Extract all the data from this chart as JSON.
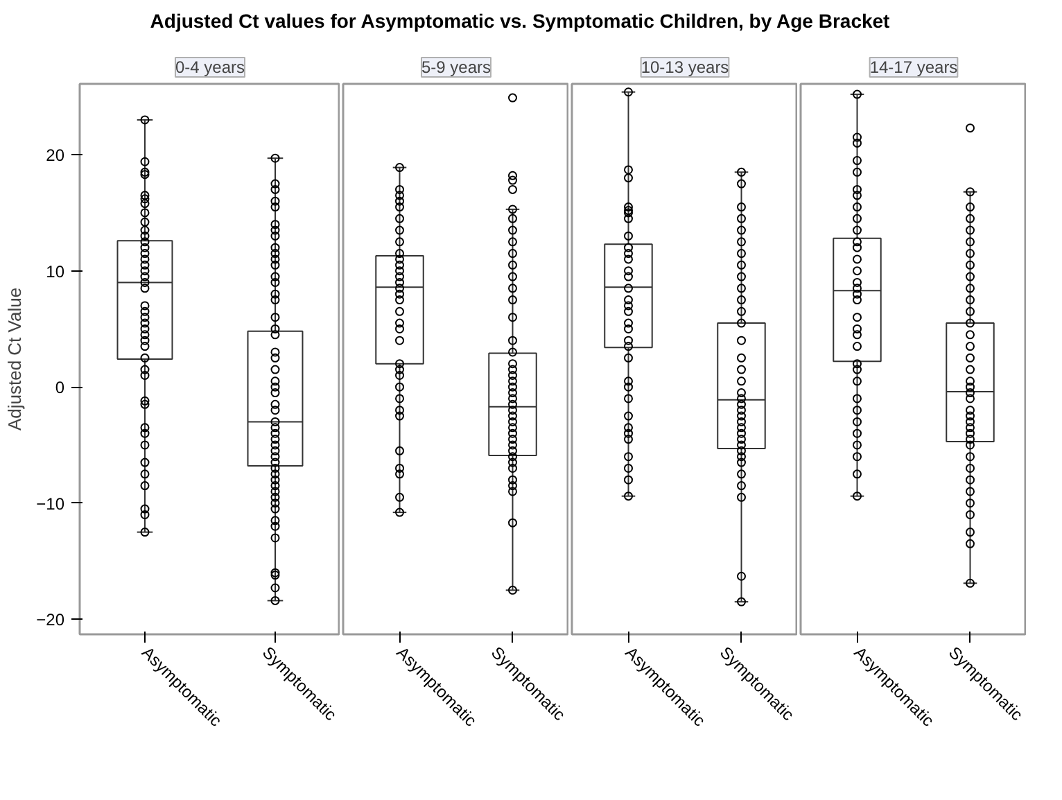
{
  "chart_data": [
    {
      "type": "box",
      "title": "Adjusted Ct values for Asymptomatic vs. Symptomatic Children, by Age Bracket",
      "subtitle": "0-4 years",
      "ylabel": "Adjusted Ct Value",
      "categories": [
        "Asymptomatic",
        "Symptomatic"
      ],
      "ylim": [
        -21.3,
        26.1
      ],
      "yticks": [
        -20,
        -10,
        0,
        10,
        20
      ],
      "grid": false,
      "marker": "circle",
      "boxes": [
        {
          "low": -12.5,
          "q1": 2.4,
          "median": 9,
          "q3": 12.6,
          "high": 23
        },
        {
          "low": -18.4,
          "q1": -6.8,
          "median": -3,
          "q3": 4.8,
          "high": 19.7
        }
      ],
      "series": [
        {
          "type": "scatter",
          "color": "#000000",
          "x": [
            "Asymptomatic",
            "Asymptomatic",
            "Asymptomatic",
            "Asymptomatic",
            "Asymptomatic",
            "Asymptomatic",
            "Asymptomatic",
            "Asymptomatic",
            "Asymptomatic",
            "Asymptomatic",
            "Asymptomatic",
            "Asymptomatic",
            "Asymptomatic",
            "Asymptomatic",
            "Asymptomatic",
            "Asymptomatic",
            "Asymptomatic",
            "Asymptomatic",
            "Asymptomatic",
            "Asymptomatic",
            "Asymptomatic",
            "Asymptomatic",
            "Asymptomatic",
            "Asymptomatic",
            "Asymptomatic",
            "Asymptomatic",
            "Asymptomatic",
            "Asymptomatic",
            "Asymptomatic",
            "Asymptomatic",
            "Asymptomatic",
            "Asymptomatic",
            "Asymptomatic",
            "Asymptomatic",
            "Asymptomatic",
            "Asymptomatic",
            "Asymptomatic",
            "Asymptomatic",
            "Asymptomatic",
            "Asymptomatic",
            "Asymptomatic",
            "Asymptomatic",
            "Symptomatic",
            "Symptomatic",
            "Symptomatic",
            "Symptomatic",
            "Symptomatic",
            "Symptomatic",
            "Symptomatic",
            "Symptomatic",
            "Symptomatic",
            "Symptomatic",
            "Symptomatic",
            "Symptomatic",
            "Symptomatic",
            "Symptomatic",
            "Symptomatic",
            "Symptomatic",
            "Symptomatic",
            "Symptomatic",
            "Symptomatic",
            "Symptomatic",
            "Symptomatic",
            "Symptomatic",
            "Symptomatic",
            "Symptomatic",
            "Symptomatic",
            "Symptomatic",
            "Symptomatic",
            "Symptomatic",
            "Symptomatic",
            "Symptomatic",
            "Symptomatic",
            "Symptomatic",
            "Symptomatic",
            "Symptomatic",
            "Symptomatic",
            "Symptomatic",
            "Symptomatic",
            "Symptomatic",
            "Symptomatic",
            "Symptomatic",
            "Symptomatic",
            "Symptomatic",
            "Symptomatic",
            "Symptomatic",
            "Symptomatic",
            "Symptomatic",
            "Symptomatic",
            "Symptomatic",
            "Symptomatic",
            "Symptomatic"
          ],
          "values": [
            23,
            19.4,
            18.5,
            18.3,
            16.5,
            16.2,
            15.8,
            15,
            14.2,
            13.5,
            13,
            12.5,
            12,
            11.5,
            11,
            10.5,
            10,
            9.5,
            9,
            8.5,
            7,
            6.5,
            6,
            5.5,
            5,
            4.5,
            4,
            3.5,
            2.5,
            1.5,
            1,
            -1.2,
            -1.5,
            -3.5,
            -4,
            -5,
            -6.5,
            -7.5,
            -8.5,
            -10.5,
            -11,
            -12.5,
            19.7,
            17.5,
            17,
            16,
            15.5,
            14,
            13.5,
            13,
            12,
            11.5,
            11,
            10.5,
            9.5,
            9,
            8,
            7.5,
            6,
            5,
            4.5,
            3,
            2.5,
            1.5,
            0.5,
            0,
            -0.5,
            -1.5,
            -2,
            -3,
            -3.5,
            -4,
            -4.5,
            -5,
            -5.5,
            -6,
            -6.5,
            -7,
            -7.5,
            -8,
            -8.5,
            -9,
            -9.5,
            -10,
            -10.5,
            -11.5,
            -12,
            -13,
            -16,
            -16.2,
            -17.3,
            -18.4
          ]
        }
      ]
    },
    {
      "type": "box",
      "subtitle": "5-9 years",
      "categories": [
        "Asymptomatic",
        "Symptomatic"
      ],
      "ylim": [
        -21.3,
        26.1
      ],
      "tick_labels": "x",
      "grid": false,
      "marker": "circle",
      "boxes": [
        {
          "low": -10.8,
          "q1": 2,
          "median": 8.6,
          "q3": 11.3,
          "high": 18.9
        },
        {
          "low": -17.5,
          "q1": -5.9,
          "median": -1.7,
          "q3": 2.9,
          "high": 15.3,
          "outliers": [
            24.9,
            18.2,
            17.8,
            17
          ]
        }
      ],
      "series": [
        {
          "type": "scatter",
          "color": "#000000",
          "x": [
            "Asymptomatic",
            "Asymptomatic",
            "Asymptomatic",
            "Asymptomatic",
            "Asymptomatic",
            "Asymptomatic",
            "Asymptomatic",
            "Asymptomatic",
            "Asymptomatic",
            "Asymptomatic",
            "Asymptomatic",
            "Asymptomatic",
            "Asymptomatic",
            "Asymptomatic",
            "Asymptomatic",
            "Asymptomatic",
            "Asymptomatic",
            "Asymptomatic",
            "Asymptomatic",
            "Asymptomatic",
            "Asymptomatic",
            "Asymptomatic",
            "Asymptomatic",
            "Asymptomatic",
            "Asymptomatic",
            "Asymptomatic",
            "Asymptomatic",
            "Asymptomatic",
            "Asymptomatic",
            "Asymptomatic",
            "Asymptomatic",
            "Asymptomatic",
            "Asymptomatic",
            "Symptomatic",
            "Symptomatic",
            "Symptomatic",
            "Symptomatic",
            "Symptomatic",
            "Symptomatic",
            "Symptomatic",
            "Symptomatic",
            "Symptomatic",
            "Symptomatic",
            "Symptomatic",
            "Symptomatic",
            "Symptomatic",
            "Symptomatic",
            "Symptomatic",
            "Symptomatic",
            "Symptomatic",
            "Symptomatic",
            "Symptomatic",
            "Symptomatic",
            "Symptomatic",
            "Symptomatic",
            "Symptomatic",
            "Symptomatic",
            "Symptomatic",
            "Symptomatic",
            "Symptomatic",
            "Symptomatic",
            "Symptomatic",
            "Symptomatic",
            "Symptomatic",
            "Symptomatic",
            "Symptomatic",
            "Symptomatic",
            "Symptomatic",
            "Symptomatic"
          ],
          "values": [
            18.9,
            17,
            16.5,
            16,
            15.5,
            14.5,
            13.5,
            12.5,
            11.5,
            11,
            10.5,
            10,
            9.5,
            9,
            8.5,
            8,
            7.5,
            6.5,
            5.5,
            5,
            4,
            2,
            1.5,
            1,
            0,
            -1,
            -2,
            -2.5,
            -5.5,
            -7,
            -7.5,
            -9.5,
            -10.8,
            15.3,
            14.5,
            13.5,
            12.5,
            11.5,
            10.5,
            9.5,
            8.5,
            7.5,
            6,
            4,
            3,
            2,
            1.5,
            1,
            0.5,
            0,
            -0.5,
            -1,
            -1.5,
            -2,
            -2.5,
            -3,
            -3.5,
            -4,
            -4.5,
            -5,
            -5.5,
            -6,
            -6.5,
            -7,
            -8,
            -8.5,
            -9,
            -11.7,
            -17.5
          ]
        }
      ]
    },
    {
      "type": "box",
      "subtitle": "10-13 years",
      "categories": [
        "Asymptomatic",
        "Symptomatic"
      ],
      "ylim": [
        -21.3,
        26.1
      ],
      "tick_labels": "x",
      "grid": false,
      "marker": "circle",
      "boxes": [
        {
          "low": -9.4,
          "q1": 3.4,
          "median": 8.6,
          "q3": 12.3,
          "high": 25.4
        },
        {
          "low": -18.5,
          "q1": -5.3,
          "median": -1.1,
          "q3": 5.5,
          "high": 18.5
        }
      ],
      "series": [
        {
          "type": "scatter",
          "color": "#000000",
          "x": [
            "Asymptomatic",
            "Asymptomatic",
            "Asymptomatic",
            "Asymptomatic",
            "Asymptomatic",
            "Asymptomatic",
            "Asymptomatic",
            "Asymptomatic",
            "Asymptomatic",
            "Asymptomatic",
            "Asymptomatic",
            "Asymptomatic",
            "Asymptomatic",
            "Asymptomatic",
            "Asymptomatic",
            "Asymptomatic",
            "Asymptomatic",
            "Asymptomatic",
            "Asymptomatic",
            "Asymptomatic",
            "Asymptomatic",
            "Asymptomatic",
            "Asymptomatic",
            "Asymptomatic",
            "Asymptomatic",
            "Asymptomatic",
            "Asymptomatic",
            "Asymptomatic",
            "Asymptomatic",
            "Asymptomatic",
            "Asymptomatic",
            "Asymptomatic",
            "Asymptomatic",
            "Symptomatic",
            "Symptomatic",
            "Symptomatic",
            "Symptomatic",
            "Symptomatic",
            "Symptomatic",
            "Symptomatic",
            "Symptomatic",
            "Symptomatic",
            "Symptomatic",
            "Symptomatic",
            "Symptomatic",
            "Symptomatic",
            "Symptomatic",
            "Symptomatic",
            "Symptomatic",
            "Symptomatic",
            "Symptomatic",
            "Symptomatic",
            "Symptomatic",
            "Symptomatic",
            "Symptomatic",
            "Symptomatic",
            "Symptomatic",
            "Symptomatic",
            "Symptomatic",
            "Symptomatic",
            "Symptomatic",
            "Symptomatic",
            "Symptomatic",
            "Symptomatic",
            "Symptomatic",
            "Symptomatic",
            "Symptomatic",
            "Symptomatic"
          ],
          "values": [
            25.4,
            18.7,
            18,
            15.5,
            15.2,
            15,
            14.5,
            13,
            12,
            11.5,
            11,
            10,
            9.5,
            8.5,
            7.5,
            7,
            6.5,
            5.5,
            5,
            4,
            3.5,
            2.5,
            0.5,
            0,
            -1,
            -2.5,
            -3.5,
            -4,
            -4.5,
            -6,
            -7,
            -8,
            -9.4,
            18.5,
            17.5,
            15.5,
            14.5,
            13.5,
            12.5,
            11.5,
            10.5,
            9.5,
            8.5,
            7.5,
            6.5,
            5.5,
            4,
            2.5,
            1.5,
            0.5,
            -0.5,
            -1,
            -1.5,
            -2,
            -2.5,
            -3,
            -3.5,
            -4,
            -4.5,
            -5,
            -5.5,
            -6,
            -6.5,
            -7.5,
            -8.5,
            -9.5,
            -16.3,
            -18.5
          ]
        }
      ]
    },
    {
      "type": "box",
      "subtitle": "14-17 years",
      "categories": [
        "Asymptomatic",
        "Symptomatic"
      ],
      "ylim": [
        -21.3,
        26.1
      ],
      "tick_labels": "x",
      "grid": false,
      "marker": "circle",
      "boxes": [
        {
          "low": -9.4,
          "q1": 2.2,
          "median": 8.3,
          "q3": 12.8,
          "high": 25.2
        },
        {
          "low": -16.9,
          "q1": -4.7,
          "median": -0.4,
          "q3": 5.5,
          "high": 16.8,
          "outliers": [
            22.3
          ]
        }
      ],
      "series": [
        {
          "type": "scatter",
          "color": "#000000",
          "x": [
            "Asymptomatic",
            "Asymptomatic",
            "Asymptomatic",
            "Asymptomatic",
            "Asymptomatic",
            "Asymptomatic",
            "Asymptomatic",
            "Asymptomatic",
            "Asymptomatic",
            "Asymptomatic",
            "Asymptomatic",
            "Asymptomatic",
            "Asymptomatic",
            "Asymptomatic",
            "Asymptomatic",
            "Asymptomatic",
            "Asymptomatic",
            "Asymptomatic",
            "Asymptomatic",
            "Asymptomatic",
            "Asymptomatic",
            "Asymptomatic",
            "Asymptomatic",
            "Asymptomatic",
            "Asymptomatic",
            "Asymptomatic",
            "Asymptomatic",
            "Asymptomatic",
            "Asymptomatic",
            "Asymptomatic",
            "Asymptomatic",
            "Asymptomatic",
            "Asymptomatic",
            "Symptomatic",
            "Symptomatic",
            "Symptomatic",
            "Symptomatic",
            "Symptomatic",
            "Symptomatic",
            "Symptomatic",
            "Symptomatic",
            "Symptomatic",
            "Symptomatic",
            "Symptomatic",
            "Symptomatic",
            "Symptomatic",
            "Symptomatic",
            "Symptomatic",
            "Symptomatic",
            "Symptomatic",
            "Symptomatic",
            "Symptomatic",
            "Symptomatic",
            "Symptomatic",
            "Symptomatic",
            "Symptomatic",
            "Symptomatic",
            "Symptomatic",
            "Symptomatic",
            "Symptomatic",
            "Symptomatic",
            "Symptomatic",
            "Symptomatic",
            "Symptomatic",
            "Symptomatic",
            "Symptomatic",
            "Symptomatic",
            "Symptomatic",
            "Symptomatic"
          ],
          "values": [
            25.2,
            21.5,
            21,
            19.5,
            18.5,
            17,
            16.5,
            15.5,
            14.5,
            13.5,
            12.5,
            12,
            11,
            10,
            9,
            8.5,
            8,
            7.5,
            6,
            5,
            4.5,
            3.5,
            2,
            1.5,
            0.5,
            -1,
            -2,
            -3,
            -4,
            -5,
            -6,
            -7.5,
            -9.4,
            16.8,
            15.5,
            14.5,
            13.5,
            12.5,
            11.5,
            10.5,
            9.5,
            8.5,
            7.5,
            6.5,
            5.5,
            4.5,
            3.5,
            2.5,
            1.5,
            0.5,
            0,
            -0.5,
            -1,
            -2,
            -2.5,
            -3,
            -3.5,
            -4,
            -4.5,
            -5,
            -6,
            -7,
            -8,
            -9,
            -10,
            -11,
            -12.5,
            -13.5,
            -16.9
          ]
        }
      ]
    }
  ]
}
